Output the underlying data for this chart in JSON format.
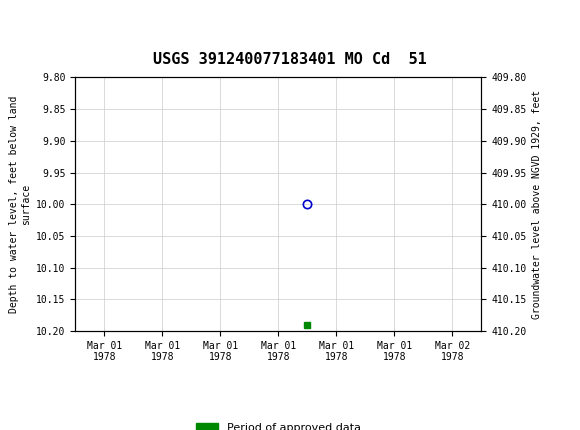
{
  "title": "USGS 391240077183401 MO Cd  51",
  "header_color": "#006633",
  "left_ylabel": "Depth to water level, feet below land\nsurface",
  "right_ylabel": "Groundwater level above NGVD 1929, feet",
  "ylim_left": [
    9.8,
    10.2
  ],
  "ylim_right": [
    409.8,
    410.2
  ],
  "yticks_left": [
    9.8,
    9.85,
    9.9,
    9.95,
    10.0,
    10.05,
    10.1,
    10.15,
    10.2
  ],
  "yticks_right": [
    409.8,
    409.85,
    409.9,
    409.95,
    410.0,
    410.05,
    410.1,
    410.15,
    410.2
  ],
  "circle_point_x": 3.5,
  "circle_point_y": 10.0,
  "square_point_x": 3.5,
  "square_point_y": 10.19,
  "x_tick_labels": [
    "Mar 01\n1978",
    "Mar 01\n1978",
    "Mar 01\n1978",
    "Mar 01\n1978",
    "Mar 01\n1978",
    "Mar 01\n1978",
    "Mar 02\n1978"
  ],
  "x_positions": [
    0,
    1,
    2,
    3,
    4,
    5,
    6
  ],
  "xlim": [
    -0.5,
    6.5
  ],
  "grid_color": "#cccccc",
  "bg_color": "#ffffff",
  "font_family": "monospace",
  "legend_label": "Period of approved data",
  "legend_color": "#008800",
  "circle_color": "#0000cc",
  "square_color": "#008800"
}
